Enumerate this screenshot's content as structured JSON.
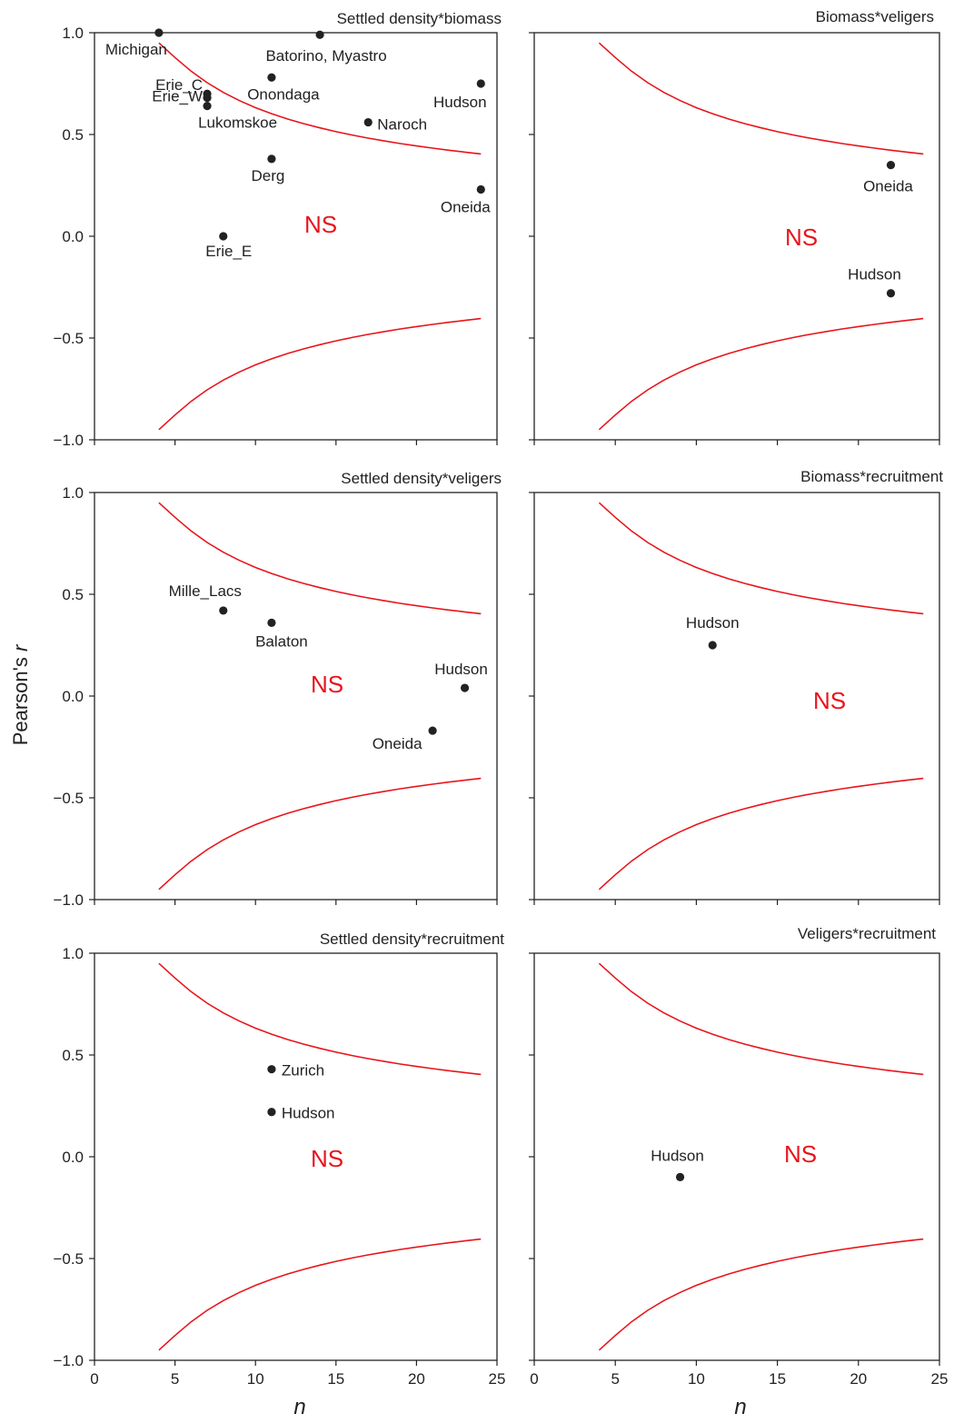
{
  "figure": {
    "y_axis_label": "Pearson's",
    "y_axis_label_italic": "r",
    "x_axis_label": "n"
  },
  "chart_data": [
    {
      "type": "scatter",
      "title": "Settled density*biomass",
      "xlim": [
        0,
        25
      ],
      "ylim": [
        -1,
        1
      ],
      "x_ticks": [
        "0",
        "5",
        "10",
        "15",
        "20",
        "25"
      ],
      "y_ticks": [
        "1.0",
        "0.5",
        "0.0",
        "-0.5",
        "-1.0"
      ],
      "region_label": "NS",
      "points": [
        {
          "label": "Michigan",
          "x": 4,
          "y": 1.0
        },
        {
          "label": "Batorino, Myastro",
          "x": 14,
          "y": 0.99
        },
        {
          "label": "Onondaga",
          "x": 11,
          "y": 0.78
        },
        {
          "label": "Hudson",
          "x": 24,
          "y": 0.75
        },
        {
          "label": "Erie_C",
          "x": 7,
          "y": 0.7
        },
        {
          "label": "Erie_W",
          "x": 7,
          "y": 0.68
        },
        {
          "label": "Lukomskoe",
          "x": 7,
          "y": 0.64
        },
        {
          "label": "Naroch",
          "x": 17,
          "y": 0.56
        },
        {
          "label": "Derg",
          "x": 11,
          "y": 0.38
        },
        {
          "label": "Oneida",
          "x": 24,
          "y": 0.23
        },
        {
          "label": "Erie_E",
          "x": 8,
          "y": 0.0
        }
      ],
      "critical_curve_color": "#e8141b",
      "point_color": "#222222"
    },
    {
      "type": "scatter",
      "title": "Biomass*veligers",
      "xlim": [
        0,
        25
      ],
      "ylim": [
        -1,
        1
      ],
      "x_ticks": [
        "0",
        "5",
        "10",
        "15",
        "20",
        "25"
      ],
      "y_ticks": [],
      "region_label": "NS",
      "points": [
        {
          "label": "Oneida",
          "x": 22,
          "y": 0.35
        },
        {
          "label": "Hudson",
          "x": 22,
          "y": -0.28
        }
      ],
      "critical_curve_color": "#e8141b",
      "point_color": "#222222"
    },
    {
      "type": "scatter",
      "title": "Settled density*veligers",
      "xlim": [
        0,
        25
      ],
      "ylim": [
        -1,
        1
      ],
      "x_ticks": [
        "0",
        "5",
        "10",
        "15",
        "20",
        "25"
      ],
      "y_ticks": [
        "1.0",
        "0.5",
        "0.0",
        "-0.5",
        "-1.0"
      ],
      "region_label": "NS",
      "points": [
        {
          "label": "Mille_Lacs",
          "x": 8,
          "y": 0.42
        },
        {
          "label": "Balaton",
          "x": 11,
          "y": 0.36
        },
        {
          "label": "Hudson",
          "x": 23,
          "y": 0.04
        },
        {
          "label": "Oneida",
          "x": 21,
          "y": -0.17
        }
      ],
      "critical_curve_color": "#e8141b",
      "point_color": "#222222"
    },
    {
      "type": "scatter",
      "title": "Biomass*recruitment",
      "xlim": [
        0,
        25
      ],
      "ylim": [
        -1,
        1
      ],
      "x_ticks": [
        "0",
        "5",
        "10",
        "15",
        "20",
        "25"
      ],
      "y_ticks": [],
      "region_label": "NS",
      "points": [
        {
          "label": "Hudson",
          "x": 11,
          "y": 0.25
        }
      ],
      "critical_curve_color": "#e8141b",
      "point_color": "#222222"
    },
    {
      "type": "scatter",
      "title": "Settled density*recruitment",
      "xlim": [
        0,
        25
      ],
      "ylim": [
        -1,
        1
      ],
      "x_ticks": [
        "0",
        "5",
        "10",
        "15",
        "20",
        "25"
      ],
      "y_ticks": [
        "1.0",
        "0.5",
        "0.0",
        "-0.5",
        "-1.0"
      ],
      "region_label": "NS",
      "points": [
        {
          "label": "Zurich",
          "x": 11,
          "y": 0.43
        },
        {
          "label": "Hudson",
          "x": 11,
          "y": 0.22
        }
      ],
      "critical_curve_color": "#e8141b",
      "point_color": "#222222"
    },
    {
      "type": "scatter",
      "title": "Veligers*recruitment",
      "xlim": [
        0,
        25
      ],
      "ylim": [
        -1,
        1
      ],
      "x_ticks": [
        "0",
        "5",
        "10",
        "15",
        "20",
        "25"
      ],
      "y_ticks": [],
      "region_label": "NS",
      "points": [
        {
          "label": "Hudson",
          "x": 9,
          "y": -0.1
        }
      ],
      "critical_curve_color": "#e8141b",
      "point_color": "#222222"
    }
  ]
}
